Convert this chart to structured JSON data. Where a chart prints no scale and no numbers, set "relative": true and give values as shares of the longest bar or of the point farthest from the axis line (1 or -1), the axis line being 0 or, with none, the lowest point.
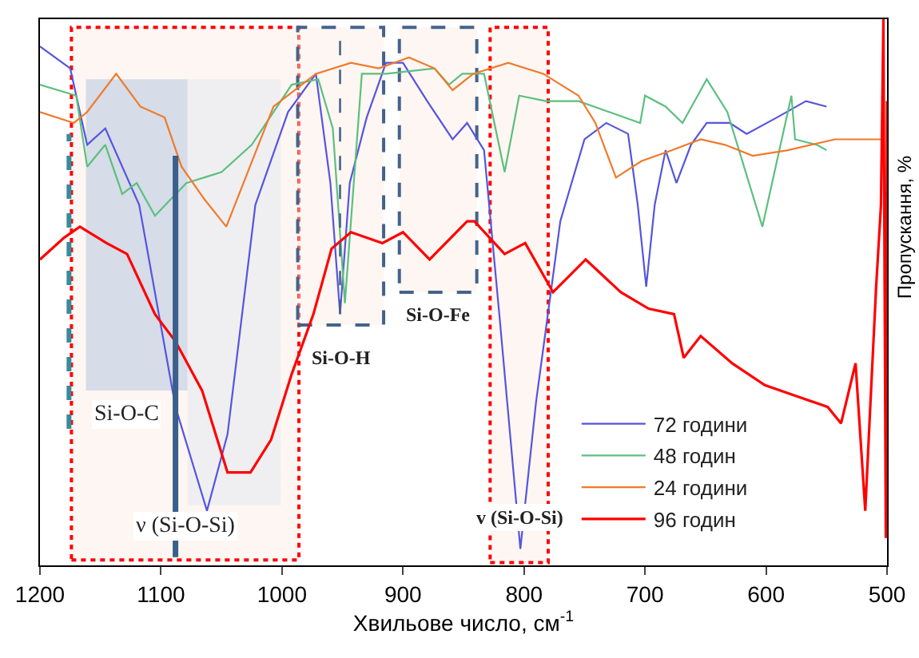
{
  "chart_data": {
    "type": "line",
    "relative": true,
    "xlabel": "Хвильове число, см$^{-1}$",
    "ylabel": "Пропускання, %",
    "xlim": [
      1200,
      500
    ],
    "xticks": [
      1200,
      1100,
      1000,
      900,
      800,
      700,
      600,
      500
    ],
    "legend": "bottom right",
    "series": [
      {
        "name": "72 години",
        "color": "#5555dd",
        "x": [
          1200,
          1175,
          1161,
          1146,
          1118,
          1088,
          1062,
          1045,
          1022,
          995,
          972,
          960,
          952,
          944,
          930,
          914,
          900,
          880,
          859,
          847,
          833,
          820,
          803,
          790,
          776,
          770,
          750,
          732,
          714,
          706,
          699,
          692,
          683,
          674,
          662,
          649,
          630,
          616,
          591,
          567,
          550
        ],
        "values": [
          0.95,
          0.91,
          0.77,
          0.8,
          0.66,
          0.29,
          0.1,
          0.24,
          0.66,
          0.83,
          0.9,
          0.7,
          0.46,
          0.7,
          0.82,
          0.92,
          0.92,
          0.85,
          0.78,
          0.81,
          0.76,
          0.45,
          0.03,
          0.3,
          0.53,
          0.63,
          0.78,
          0.81,
          0.79,
          0.66,
          0.51,
          0.66,
          0.76,
          0.7,
          0.77,
          0.81,
          0.81,
          0.79,
          0.82,
          0.85,
          0.84
        ]
      },
      {
        "name": "48 годин",
        "color": "#5cbf7f",
        "x": [
          1200,
          1170,
          1161,
          1146,
          1132,
          1120,
          1105,
          1079,
          1050,
          1025,
          992,
          970,
          958,
          948,
          934,
          914,
          874,
          862,
          851,
          833,
          816,
          804,
          782,
          755,
          704,
          700,
          683,
          669,
          649,
          632,
          603,
          588,
          579,
          576,
          558,
          550
        ],
        "values": [
          0.88,
          0.86,
          0.73,
          0.77,
          0.68,
          0.7,
          0.64,
          0.7,
          0.72,
          0.77,
          0.88,
          0.89,
          0.8,
          0.48,
          0.9,
          0.9,
          0.91,
          0.88,
          0.9,
          0.9,
          0.72,
          0.86,
          0.85,
          0.85,
          0.81,
          0.86,
          0.84,
          0.81,
          0.89,
          0.83,
          0.62,
          0.77,
          0.86,
          0.78,
          0.77,
          0.76
        ]
      },
      {
        "name": "24 години",
        "color": "#f07a2a",
        "x": [
          1200,
          1172,
          1161,
          1137,
          1117,
          1097,
          1083,
          1064,
          1046,
          1007,
          972,
          943,
          920,
          895,
          874,
          859,
          842,
          813,
          784,
          755,
          741,
          724,
          703,
          678,
          654,
          634,
          611,
          582,
          543,
          504
        ],
        "values": [
          0.83,
          0.81,
          0.83,
          0.9,
          0.84,
          0.82,
          0.73,
          0.67,
          0.62,
          0.84,
          0.9,
          0.92,
          0.91,
          0.93,
          0.91,
          0.87,
          0.9,
          0.92,
          0.9,
          0.86,
          0.81,
          0.71,
          0.74,
          0.76,
          0.78,
          0.77,
          0.75,
          0.76,
          0.78,
          0.78
        ]
      },
      {
        "name": "96 годин",
        "color": "#ff0000",
        "x": [
          1200,
          1180,
          1167,
          1145,
          1128,
          1105,
          1088,
          1066,
          1045,
          1026,
          1009,
          992,
          974,
          959,
          943,
          917,
          900,
          878,
          847,
          841,
          816,
          799,
          776,
          749,
          720,
          697,
          676,
          668,
          654,
          628,
          601,
          575,
          549,
          538,
          526,
          518,
          513,
          509,
          505,
          503,
          501,
          500
        ],
        "values": [
          0.56,
          0.6,
          0.62,
          0.59,
          0.57,
          0.46,
          0.41,
          0.32,
          0.17,
          0.17,
          0.23,
          0.35,
          0.46,
          0.58,
          0.61,
          0.59,
          0.61,
          0.56,
          0.63,
          0.63,
          0.57,
          0.59,
          0.5,
          0.56,
          0.5,
          0.47,
          0.46,
          0.38,
          0.42,
          0.37,
          0.33,
          0.31,
          0.29,
          0.26,
          0.37,
          0.1,
          0.33,
          0.51,
          0.66,
          1,
          0.05,
          0.85
        ]
      }
    ],
    "bands": [
      {
        "axis": "x",
        "from": 1174,
        "to": 986,
        "label": "ν (Si-O-Si)",
        "color": "#ff0000"
      },
      {
        "axis": "x",
        "from": 987,
        "to": 916,
        "label": "Si-O-H",
        "color": "#44638a"
      },
      {
        "axis": "x",
        "from": 903,
        "to": 839,
        "label": "Si-O-Fe",
        "color": "#44638a"
      },
      {
        "axis": "x",
        "from": 828,
        "to": 780,
        "label": "v (Si-O-Si)",
        "color": "#ff0000"
      },
      {
        "axis": "x",
        "from": 1162,
        "to": 1078,
        "label": "Si-O-C",
        "color": "#d6dce8"
      },
      {
        "axis": "x",
        "from": 1078,
        "to": 1001,
        "color": "#efeff1"
      }
    ],
    "ref_lines": [
      {
        "axis": "x",
        "value": 1088,
        "color": "#3a5f8a",
        "line_style": "solid"
      },
      {
        "axis": "x",
        "value": 1176,
        "color": "#3a8a9a",
        "line_style": "dashed"
      },
      {
        "axis": "x",
        "value": 952,
        "color": "#44638a",
        "line_style": "dashed"
      }
    ]
  }
}
